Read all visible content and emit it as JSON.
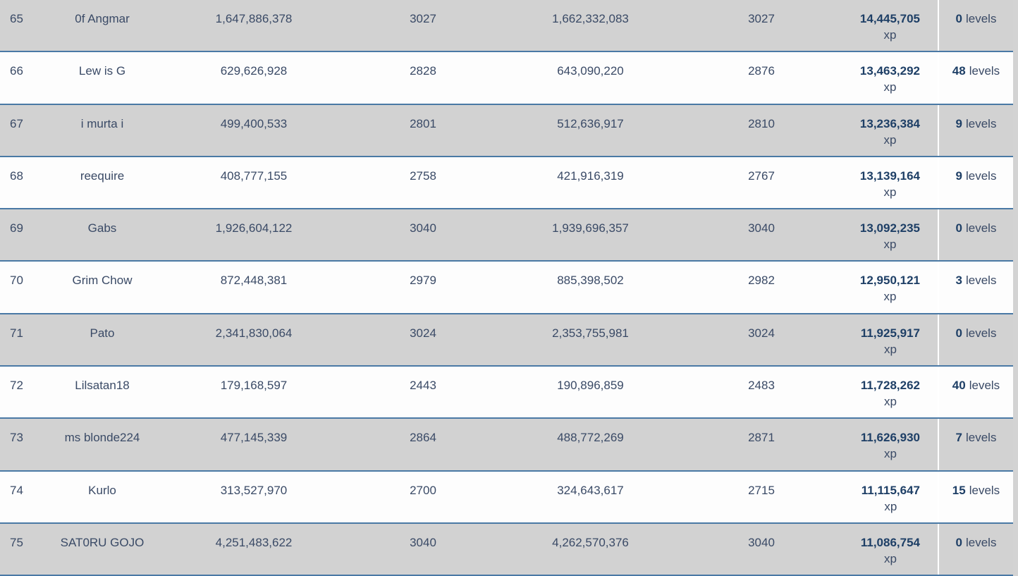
{
  "labels": {
    "xp_unit": "xp",
    "levels_unit": "levels"
  },
  "colors": {
    "page_bg": "#d3d3d3",
    "row_shaded": "#d2d2d2",
    "row_plain": "#fdfdfd",
    "accent_line": "#4a79a5",
    "text": "#3a4a66",
    "bold_text": "#1e3f66",
    "col_divider": "#ffffff"
  },
  "rows": [
    {
      "rank": "65",
      "name": "0f Angmar",
      "start_xp": "1,647,886,378",
      "start_level": "3027",
      "end_xp": "1,662,332,083",
      "end_level": "3027",
      "gained_xp": "14,445,705",
      "gained_levels": "0"
    },
    {
      "rank": "66",
      "name": "Lew is G",
      "start_xp": "629,626,928",
      "start_level": "2828",
      "end_xp": "643,090,220",
      "end_level": "2876",
      "gained_xp": "13,463,292",
      "gained_levels": "48"
    },
    {
      "rank": "67",
      "name": "i murta i",
      "start_xp": "499,400,533",
      "start_level": "2801",
      "end_xp": "512,636,917",
      "end_level": "2810",
      "gained_xp": "13,236,384",
      "gained_levels": "9"
    },
    {
      "rank": "68",
      "name": "reequire",
      "start_xp": "408,777,155",
      "start_level": "2758",
      "end_xp": "421,916,319",
      "end_level": "2767",
      "gained_xp": "13,139,164",
      "gained_levels": "9"
    },
    {
      "rank": "69",
      "name": "Gabs",
      "start_xp": "1,926,604,122",
      "start_level": "3040",
      "end_xp": "1,939,696,357",
      "end_level": "3040",
      "gained_xp": "13,092,235",
      "gained_levels": "0"
    },
    {
      "rank": "70",
      "name": "Grim Chow",
      "start_xp": "872,448,381",
      "start_level": "2979",
      "end_xp": "885,398,502",
      "end_level": "2982",
      "gained_xp": "12,950,121",
      "gained_levels": "3"
    },
    {
      "rank": "71",
      "name": "Pato",
      "start_xp": "2,341,830,064",
      "start_level": "3024",
      "end_xp": "2,353,755,981",
      "end_level": "3024",
      "gained_xp": "11,925,917",
      "gained_levels": "0"
    },
    {
      "rank": "72",
      "name": "Lilsatan18",
      "start_xp": "179,168,597",
      "start_level": "2443",
      "end_xp": "190,896,859",
      "end_level": "2483",
      "gained_xp": "11,728,262",
      "gained_levels": "40"
    },
    {
      "rank": "73",
      "name": "ms blonde224",
      "start_xp": "477,145,339",
      "start_level": "2864",
      "end_xp": "488,772,269",
      "end_level": "2871",
      "gained_xp": "11,626,930",
      "gained_levels": "7"
    },
    {
      "rank": "74",
      "name": "Kurlo",
      "start_xp": "313,527,970",
      "start_level": "2700",
      "end_xp": "324,643,617",
      "end_level": "2715",
      "gained_xp": "11,115,647",
      "gained_levels": "15"
    },
    {
      "rank": "75",
      "name": "SAT0RU GOJO",
      "start_xp": "4,251,483,622",
      "start_level": "3040",
      "end_xp": "4,262,570,376",
      "end_level": "3040",
      "gained_xp": "11,086,754",
      "gained_levels": "0"
    }
  ]
}
